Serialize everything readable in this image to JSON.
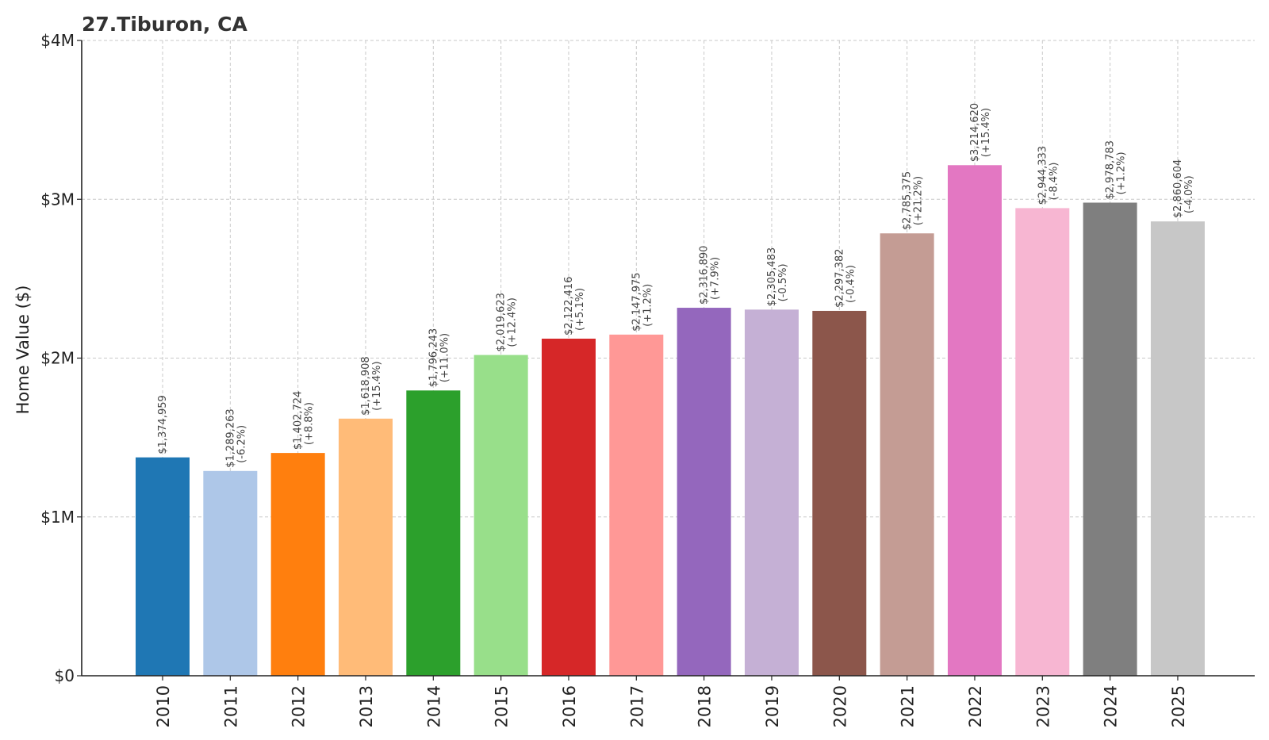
{
  "chart_data": {
    "type": "bar",
    "title": "27.Tiburon, CA",
    "xlabel": "",
    "ylabel": "Home Value ($)",
    "ylim": [
      0,
      4000000
    ],
    "yticks": [
      {
        "value": 0,
        "label": "$0"
      },
      {
        "value": 1000000,
        "label": "$1M"
      },
      {
        "value": 2000000,
        "label": "$2M"
      },
      {
        "value": 3000000,
        "label": "$3M"
      },
      {
        "value": 4000000,
        "label": "$4M"
      }
    ],
    "grid": true,
    "categories": [
      "2010",
      "2011",
      "2012",
      "2013",
      "2014",
      "2015",
      "2016",
      "2017",
      "2018",
      "2019",
      "2020",
      "2021",
      "2022",
      "2023",
      "2024",
      "2025"
    ],
    "values": [
      1374959,
      1289263,
      1402724,
      1618908,
      1796243,
      2019623,
      2122416,
      2147975,
      2316890,
      2305483,
      2297382,
      2785375,
      3214620,
      2944333,
      2978783,
      2860604
    ],
    "value_labels": [
      "$1,374,959",
      "$1,289,263",
      "$1,402,724",
      "$1,618,908",
      "$1,796,243",
      "$2,019,623",
      "$2,122,416",
      "$2,147,975",
      "$2,316,890",
      "$2,305,483",
      "$2,297,382",
      "$2,785,375",
      "$3,214,620",
      "$2,944,333",
      "$2,978,783",
      "$2,860,604"
    ],
    "change_labels": [
      "",
      "(-6.2%)",
      "(+8.8%)",
      "(+15.4%)",
      "(+11.0%)",
      "(+12.4%)",
      "(+5.1%)",
      "(+1.2%)",
      "(+7.9%)",
      "(-0.5%)",
      "(-0.4%)",
      "(+21.2%)",
      "(+15.4%)",
      "(-8.4%)",
      "(+1.2%)",
      "(-4.0%)"
    ],
    "colors": [
      "#1f77b4",
      "#aec7e8",
      "#ff7f0e",
      "#ffbb78",
      "#2ca02c",
      "#98df8a",
      "#d62728",
      "#ff9896",
      "#9467bd",
      "#c5b0d5",
      "#8c564b",
      "#c49c94",
      "#e377c2",
      "#f7b6d2",
      "#7f7f7f",
      "#c7c7c7"
    ]
  }
}
